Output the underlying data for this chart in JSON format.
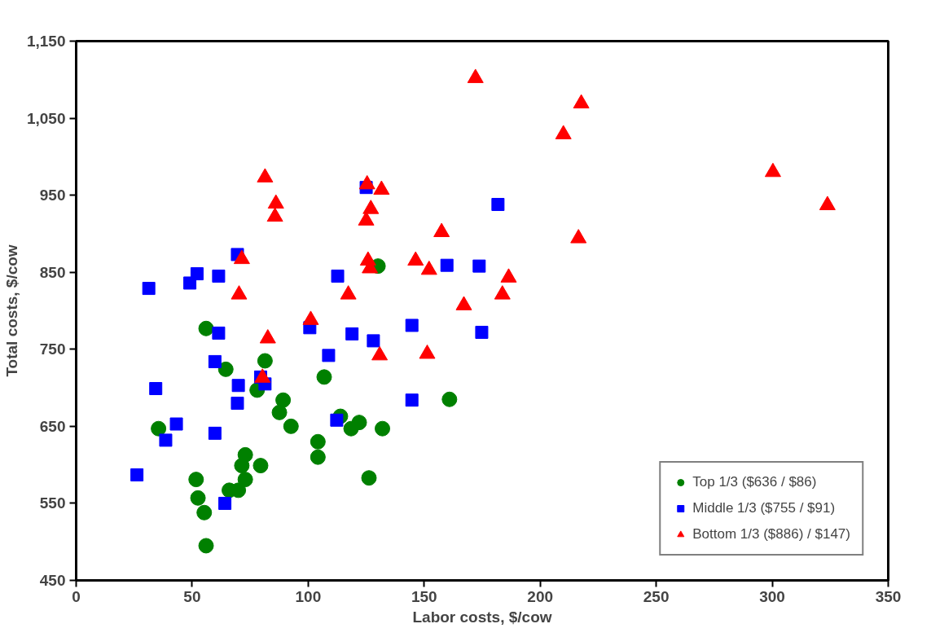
{
  "chart_data": {
    "type": "scatter",
    "xlabel": "Labor costs, $/cow",
    "ylabel": "Total costs, $/cow",
    "xlim": [
      0,
      350
    ],
    "xticks": [
      0,
      50,
      100,
      150,
      200,
      250,
      300,
      350
    ],
    "ylim": [
      450,
      1150
    ],
    "yticks": [
      450,
      550,
      650,
      750,
      850,
      950,
      {
        "value": 1050,
        "label": "1,050"
      },
      {
        "value": 1150,
        "label": "1,150"
      }
    ],
    "grid": false,
    "legend": "bottom right",
    "series": [
      {
        "name": "Top 1/3 ($636 / $86)",
        "color": "#008000",
        "marker": "circle",
        "x": [
          56.0,
          64.5,
          35.5,
          81.4,
          78.0,
          89.2,
          87.6,
          92.6,
          106.9,
          104.2,
          104.2,
          72.9,
          71.4,
          79.5,
          72.9,
          69.9,
          66.0,
          51.7,
          52.5,
          55.2,
          56.0,
          113.9,
          118.5,
          122.0,
          132.0,
          160.9,
          126.2,
          130.1
        ],
        "values": [
          777,
          724,
          647,
          735,
          697,
          684,
          668,
          650,
          714,
          630,
          610,
          613,
          599,
          599,
          581,
          567,
          567,
          581,
          557,
          538,
          495,
          663,
          647,
          655,
          647,
          685,
          583,
          858
        ]
      },
      {
        "name": "Middle 1/3 ($755 / $91)",
        "color": "#0000ff",
        "marker": "square",
        "x": [
          69.5,
          52.1,
          49.0,
          61.4,
          31.3,
          61.4,
          59.8,
          69.9,
          69.5,
          34.3,
          43.2,
          38.6,
          59.8,
          26.2,
          64.1,
          108.8,
          100.7,
          79.5,
          81.4,
          112.7,
          112.3,
          125.0,
          181.8,
          159.8,
          173.7,
          144.7,
          174.8,
          118.9,
          128.1,
          144.7
        ],
        "values": [
          873,
          848,
          836,
          845,
          829,
          771,
          734,
          703,
          680,
          699,
          653,
          632,
          641,
          587,
          550,
          742,
          778,
          714,
          705,
          845,
          658,
          960,
          938,
          859,
          858,
          781,
          772,
          770,
          761,
          684
        ]
      },
      {
        "name": "Bottom 1/3 ($886) / $147)",
        "color": "#ff0000",
        "marker": "triangle",
        "x": [
          172.1,
          81.4,
          86.1,
          85.7,
          125.4,
          131.6,
          127.0,
          125.0,
          157.5,
          125.8,
          126.6,
          146.3,
          152.1,
          186.4,
          183.7,
          167.1,
          117.3,
          101.1,
          82.6,
          130.8,
          151.3,
          80.3,
          71.4,
          70.2,
          217.7,
          210.0,
          300.3,
          323.8,
          216.5
        ],
        "values": [
          1102,
          973,
          939,
          922,
          964,
          957,
          932,
          917,
          902,
          865,
          855,
          865,
          853,
          843,
          821,
          807,
          821,
          788,
          764,
          742,
          744,
          713,
          867,
          821,
          1069,
          1029,
          980,
          937,
          894
        ]
      }
    ]
  }
}
